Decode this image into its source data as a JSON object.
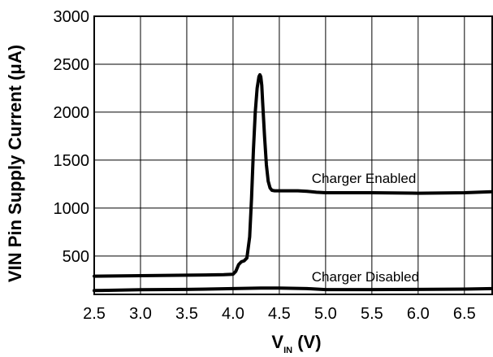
{
  "chart_data": {
    "type": "line",
    "title": "",
    "ylabel": "VIN Pin Supply Current (μA)",
    "xlabel": {
      "main": "V",
      "sub": "IN",
      "unit": " (V)"
    },
    "xlim": [
      2.5,
      6.8
    ],
    "ylim": [
      100,
      3000
    ],
    "x_ticks": [
      2.5,
      3.0,
      3.5,
      4.0,
      4.5,
      5.0,
      5.5,
      6.0,
      6.5
    ],
    "x_tick_labels": [
      "2.5",
      "3.0",
      "3.5",
      "4.0",
      "4.5",
      "5.0",
      "5.5",
      "6.0",
      "6.5"
    ],
    "y_ticks": [
      500,
      1000,
      1500,
      2000,
      2500,
      3000
    ],
    "y_tick_labels": [
      "500",
      "1000",
      "1500",
      "2000",
      "2500",
      "3000"
    ],
    "grid": true,
    "series": [
      {
        "name": "Charger Enabled",
        "x": [
          2.5,
          3.0,
          3.5,
          3.9,
          4.0,
          4.03,
          4.06,
          4.09,
          4.12,
          4.15,
          4.18,
          4.2,
          4.22,
          4.24,
          4.26,
          4.28,
          4.29,
          4.3,
          4.31,
          4.32,
          4.34,
          4.36,
          4.38,
          4.4,
          4.42,
          4.45,
          4.5,
          4.6,
          4.7,
          4.8,
          4.9,
          5.0,
          5.5,
          6.0,
          6.5,
          6.8
        ],
        "y": [
          290,
          295,
          300,
          305,
          310,
          340,
          410,
          440,
          450,
          480,
          700,
          1100,
          1600,
          2000,
          2250,
          2370,
          2390,
          2370,
          2280,
          2100,
          1750,
          1450,
          1280,
          1210,
          1185,
          1180,
          1180,
          1180,
          1180,
          1175,
          1165,
          1160,
          1160,
          1155,
          1160,
          1170
        ]
      },
      {
        "name": "Charger Disabled",
        "x": [
          2.5,
          3.0,
          3.5,
          4.0,
          4.3,
          4.5,
          4.8,
          5.0,
          5.5,
          6.0,
          6.5,
          6.8
        ],
        "y": [
          140,
          148,
          152,
          160,
          165,
          165,
          160,
          150,
          150,
          152,
          155,
          160
        ]
      }
    ],
    "annotations": [
      {
        "text": "Charger Enabled",
        "series": "Charger Enabled"
      },
      {
        "text": "Charger Disabled",
        "series": "Charger Disabled"
      }
    ]
  }
}
